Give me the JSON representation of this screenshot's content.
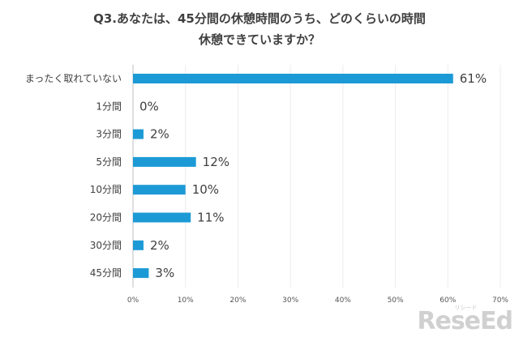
{
  "chart_data": {
    "type": "bar",
    "orientation": "horizontal",
    "title_lines": [
      "Q3.あなたは、45分間の休憩時間のうち、どのくらいの時間",
      "休憩できていますか？"
    ],
    "categories": [
      "まったく取れていない",
      "1分間",
      "3分間",
      "5分間",
      "10分間",
      "20分間",
      "30分間",
      "45分間"
    ],
    "values": [
      61,
      0,
      2,
      12,
      10,
      11,
      2,
      3
    ],
    "value_suffix": "%",
    "xlim": [
      0,
      70
    ],
    "xticks": [
      "0%",
      "10%",
      "20%",
      "30%",
      "40%",
      "50%",
      "60%",
      "70%"
    ],
    "xtick_values": [
      0,
      10,
      20,
      30,
      40,
      50,
      60,
      70
    ],
    "grid": true,
    "bar_color": "#1c9ad6",
    "legend": "none"
  },
  "watermark": {
    "text": "ReseEd",
    "small_text": "リシード"
  }
}
